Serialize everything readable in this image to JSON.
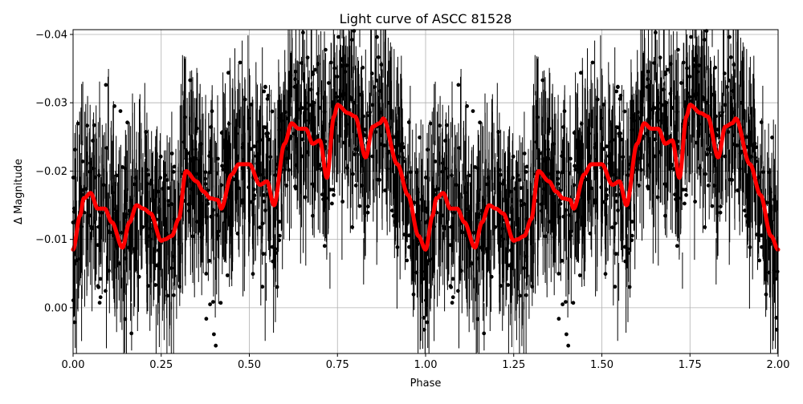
{
  "figure": {
    "title": "Light curve of ASCC 81528",
    "xlabel": "Phase",
    "ylabel": "Δ Magnitude"
  },
  "colors": {
    "data_points": "#000000",
    "model_curve": "#ff0000",
    "grid": "#b0b0b0",
    "axes": "#000000"
  },
  "chart_data": {
    "type": "scatter",
    "title": "Light curve of ASCC 81528",
    "xlabel": "Phase",
    "ylabel": "Δ Magnitude",
    "xlim": [
      0.0,
      2.0
    ],
    "ylim": [
      0.0067,
      -0.0407
    ],
    "y_inverted": true,
    "grid": true,
    "legend": null,
    "xticks": [
      0.0,
      0.25,
      0.5,
      0.75,
      1.0,
      1.25,
      1.5,
      1.75,
      2.0
    ],
    "xtick_labels": [
      "0.00",
      "0.25",
      "0.50",
      "0.75",
      "1.00",
      "1.25",
      "1.50",
      "1.75",
      "2.00"
    ],
    "yticks": [
      -0.04,
      -0.03,
      -0.02,
      -0.01,
      0.0
    ],
    "ytick_labels": [
      "−0.04",
      "−0.03",
      "−0.02",
      "−0.01",
      "0.00"
    ],
    "series": [
      {
        "name": "observations",
        "kind": "errorbar-scatter",
        "color": "#000000",
        "description": "Dense phase-folded photometry with vertical error bars, repeated over two cycles (phase 0-2); scatter spans roughly +0.006 to -0.041 mag"
      },
      {
        "name": "model",
        "kind": "line",
        "color": "#ff0000",
        "period_repeats": 2,
        "x": [
          0.0,
          0.02,
          0.03,
          0.05,
          0.07,
          0.09,
          0.11,
          0.14,
          0.16,
          0.18,
          0.2,
          0.22,
          0.25,
          0.26,
          0.28,
          0.3,
          0.32,
          0.35,
          0.37,
          0.39,
          0.41,
          0.42,
          0.45,
          0.47,
          0.5,
          0.53,
          0.55,
          0.57,
          0.6,
          0.62,
          0.64,
          0.66,
          0.68,
          0.7,
          0.72,
          0.74,
          0.75,
          0.78,
          0.8,
          0.83,
          0.85,
          0.87,
          0.88,
          0.92,
          0.95,
          0.98,
          1.0
        ],
        "y": [
          -0.0085,
          -0.0135,
          -0.016,
          -0.0168,
          -0.0145,
          -0.0145,
          -0.0125,
          -0.0088,
          -0.0125,
          -0.015,
          -0.0145,
          -0.0138,
          -0.0098,
          -0.01,
          -0.0105,
          -0.013,
          -0.02,
          -0.0185,
          -0.017,
          -0.016,
          -0.0158,
          -0.0145,
          -0.0195,
          -0.021,
          -0.021,
          -0.018,
          -0.0185,
          -0.015,
          -0.024,
          -0.027,
          -0.0262,
          -0.0262,
          -0.024,
          -0.0245,
          -0.019,
          -0.028,
          -0.0297,
          -0.0285,
          -0.028,
          -0.022,
          -0.0265,
          -0.027,
          -0.0277,
          -0.021,
          -0.0165,
          -0.0105,
          -0.0085
        ]
      }
    ]
  }
}
